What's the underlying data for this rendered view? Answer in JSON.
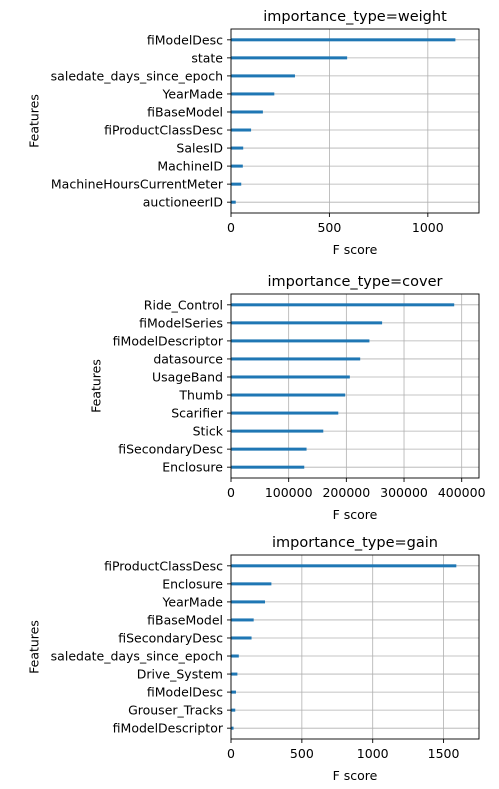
{
  "chart_data": [
    {
      "type": "bar",
      "orientation": "horizontal",
      "title": "importance_type=weight",
      "xlabel": "F score",
      "ylabel": "Features",
      "xlim": [
        0,
        1260
      ],
      "xticks": [
        0,
        500,
        1000
      ],
      "grid": true,
      "bar_color": "#1f77b4",
      "categories": [
        "fiModelDesc",
        "state",
        "saledate_days_since_epoch",
        "YearMade",
        "fiBaseModel",
        "fiProductClassDesc",
        "SalesID",
        "MachineID",
        "MachineHoursCurrentMeter",
        "auctioneerID"
      ],
      "values": [
        1140,
        590,
        325,
        220,
        162,
        102,
        62,
        60,
        52,
        24
      ]
    },
    {
      "type": "bar",
      "orientation": "horizontal",
      "title": "importance_type=cover",
      "xlabel": "F score",
      "ylabel": "Features",
      "xlim": [
        0,
        430000
      ],
      "xticks": [
        0,
        100000,
        200000,
        300000,
        400000
      ],
      "grid": true,
      "bar_color": "#1f77b4",
      "categories": [
        "Ride_Control",
        "fiModelSeries",
        "fiModelDescriptor",
        "datasource",
        "UsageBand",
        "Thumb",
        "Scarifier",
        "Stick",
        "fiSecondaryDesc",
        "Enclosure"
      ],
      "values": [
        387000,
        262000,
        240000,
        224000,
        206000,
        198000,
        186000,
        160000,
        131000,
        127000
      ]
    },
    {
      "type": "bar",
      "orientation": "horizontal",
      "title": "importance_type=gain",
      "xlabel": "F score",
      "ylabel": "Features",
      "xlim": [
        0,
        1750
      ],
      "xticks": [
        0,
        500,
        1000,
        1500
      ],
      "grid": true,
      "bar_color": "#1f77b4",
      "categories": [
        "fiProductClassDesc",
        "Enclosure",
        "YearMade",
        "fiBaseModel",
        "fiSecondaryDesc",
        "saledate_days_since_epoch",
        "Drive_System",
        "fiModelDesc",
        "Grouser_Tracks",
        "fiModelDescriptor"
      ],
      "values": [
        1590,
        285,
        240,
        160,
        145,
        55,
        45,
        35,
        30,
        18
      ]
    }
  ]
}
